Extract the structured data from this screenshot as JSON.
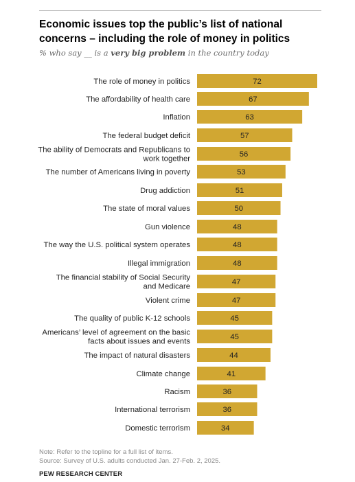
{
  "header": {
    "title": "Economic issues top the public’s list of national concerns – including the role of money in politics",
    "subtitle_pre": "% who say __ is a ",
    "subtitle_bold": "very big problem",
    "subtitle_post": " in the country today"
  },
  "chart_data": {
    "type": "bar",
    "orientation": "horizontal",
    "bar_color": "#D1A732",
    "categories": [
      "The role of money in politics",
      "The affordability of health care",
      "Inflation",
      "The federal budget deficit",
      "The ability of Democrats and Republicans to work together",
      "The number of Americans living in poverty",
      "Drug addiction",
      "The state of moral values",
      "Gun violence",
      "The way the U.S. political system operates",
      "Illegal immigration",
      "The financial stability of Social Security and Medicare",
      "Violent crime",
      "The quality of public K-12 schools",
      "Americans’ level of agreement on the basic facts about issues and events",
      "The impact of natural disasters",
      "Climate change",
      "Racism",
      "International terrorism",
      "Domestic terrorism"
    ],
    "values": [
      72,
      67,
      63,
      57,
      56,
      53,
      51,
      50,
      48,
      48,
      48,
      47,
      47,
      45,
      45,
      44,
      41,
      36,
      36,
      34
    ],
    "xlim": [
      0,
      72
    ]
  },
  "footer": {
    "note": "Note: Refer to the topline for a full list of items.",
    "source": "Source: Survey of U.S. adults conducted Jan. 27-Feb. 2, 2025.",
    "brand": "PEW RESEARCH CENTER"
  }
}
